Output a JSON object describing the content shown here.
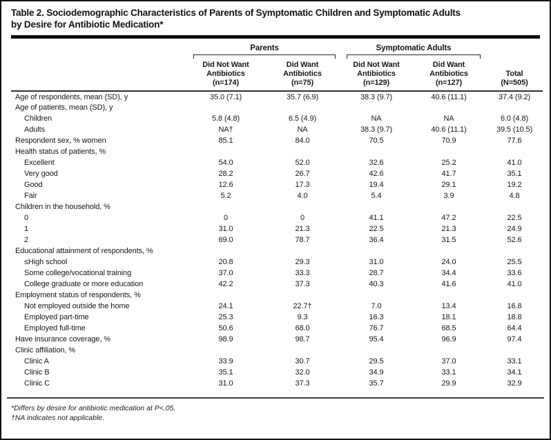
{
  "colors": {
    "background": "#ffffff",
    "text": "#151515",
    "rule": "#2e2e2e",
    "thick_bar": "#0d0d0d"
  },
  "title": "Table 2. Sociodemographic Characteristics of Parents of Symptomatic Children and Symptomatic Adults\nby Desire for Antibiotic Medication*",
  "table": {
    "group_headers": [
      {
        "label": "Parents"
      },
      {
        "label": "Symptomatic Adults"
      }
    ],
    "column_headers": [
      "Did Not Want\nAntibiotics\n(n=174)",
      "Did Want\nAntibiotics\n(n=75)",
      "Did Not Want\nAntibiotics\n(n=129)",
      "Did Want\nAntibiotics\n(n=127)",
      "Total\n(N=505)"
    ],
    "rows": [
      {
        "label": "Age of respondents, mean (SD), y",
        "indent": false,
        "values": [
          "35.0 (7.1)",
          "35.7 (6.9)",
          "38.3 (9.7)",
          "40.6 (11.1)",
          "37.4 (9.2)"
        ]
      },
      {
        "label": "Age of patients, mean (SD), y",
        "indent": false,
        "values": [
          "",
          "",
          "",
          "",
          ""
        ]
      },
      {
        "label": "Children",
        "indent": true,
        "values": [
          "5.8 (4.8)",
          "6.5 (4.9)",
          "NA",
          "NA",
          "6.0 (4.8)"
        ]
      },
      {
        "label": "Adults",
        "indent": true,
        "values": [
          "NA†",
          "NA",
          "38.3 (9.7)",
          "40.6 (11.1)",
          "39.5 (10.5)"
        ]
      },
      {
        "label": "Respondent sex, % women",
        "indent": false,
        "values": [
          "85.1",
          "84.0",
          "70.5",
          "70.9",
          "77.6"
        ]
      },
      {
        "label": "Health status of patients, %",
        "indent": false,
        "values": [
          "",
          "",
          "",
          "",
          ""
        ]
      },
      {
        "label": "Excellent",
        "indent": true,
        "values": [
          "54.0",
          "52.0",
          "32.6",
          "25.2",
          "41.0"
        ]
      },
      {
        "label": "Very good",
        "indent": true,
        "values": [
          "28.2",
          "26.7",
          "42.6",
          "41.7",
          "35.1"
        ]
      },
      {
        "label": "Good",
        "indent": true,
        "values": [
          "12.6",
          "17.3",
          "19.4",
          "29.1",
          "19.2"
        ]
      },
      {
        "label": "Fair",
        "indent": true,
        "values": [
          "5.2",
          "4.0",
          "5.4",
          "3.9",
          "4.8"
        ]
      },
      {
        "label": "Children in the household, %",
        "indent": false,
        "values": [
          "",
          "",
          "",
          "",
          ""
        ]
      },
      {
        "label": "0",
        "indent": true,
        "values": [
          "0",
          "0",
          "41.1",
          "47.2",
          "22.5"
        ]
      },
      {
        "label": "1",
        "indent": true,
        "values": [
          "31.0",
          "21.3",
          "22.5",
          "21.3",
          "24.9"
        ]
      },
      {
        "label": "2",
        "indent": true,
        "values": [
          "69.0",
          "78.7",
          "36.4",
          "31.5",
          "52.6"
        ]
      },
      {
        "label": "Educational attainment of respondents, %",
        "indent": false,
        "values": [
          "",
          "",
          "",
          "",
          ""
        ]
      },
      {
        "label": "≤High school",
        "indent": true,
        "values": [
          "20.8",
          "29.3",
          "31.0",
          "24.0",
          "25.5"
        ]
      },
      {
        "label": "Some college/vocational training",
        "indent": true,
        "values": [
          "37.0",
          "33.3",
          "28.7",
          "34.4",
          "33.6"
        ]
      },
      {
        "label": "College graduate or more education",
        "indent": true,
        "values": [
          "42.2",
          "37.3",
          "40.3",
          "41.6",
          "41.0"
        ]
      },
      {
        "label": "Employment status of respondents, %",
        "indent": false,
        "values": [
          "",
          "",
          "",
          "",
          ""
        ]
      },
      {
        "label": "Not employed outside the home",
        "indent": true,
        "values": [
          "24.1",
          "22.7†",
          "7.0",
          "13.4",
          "16.8"
        ]
      },
      {
        "label": "Employed part-time",
        "indent": true,
        "values": [
          "25.3",
          "9.3",
          "16.3",
          "18.1",
          "18.8"
        ]
      },
      {
        "label": "Employed full-time",
        "indent": true,
        "values": [
          "50.6",
          "68.0",
          "76.7",
          "68.5",
          "64.4"
        ]
      },
      {
        "label": "Have insurance coverage, %",
        "indent": false,
        "values": [
          "98.9",
          "98.7",
          "95.4",
          "96.9",
          "97.4"
        ]
      },
      {
        "label": "Clinic affiliation, %",
        "indent": false,
        "values": [
          "",
          "",
          "",
          "",
          ""
        ]
      },
      {
        "label": "Clinic A",
        "indent": true,
        "values": [
          "33.9",
          "30.7",
          "29.5",
          "37.0",
          "33.1"
        ]
      },
      {
        "label": "Clinic B",
        "indent": true,
        "values": [
          "35.1",
          "32.0",
          "34.9",
          "33.1",
          "34.1"
        ]
      },
      {
        "label": "Clinic C",
        "indent": true,
        "values": [
          "31.0",
          "37.3",
          "35.7",
          "29.9",
          "32.9"
        ]
      }
    ]
  },
  "footnotes": [
    "*Differs by desire for antibiotic medication at P<.05.",
    "†NA indicates not applicable."
  ]
}
